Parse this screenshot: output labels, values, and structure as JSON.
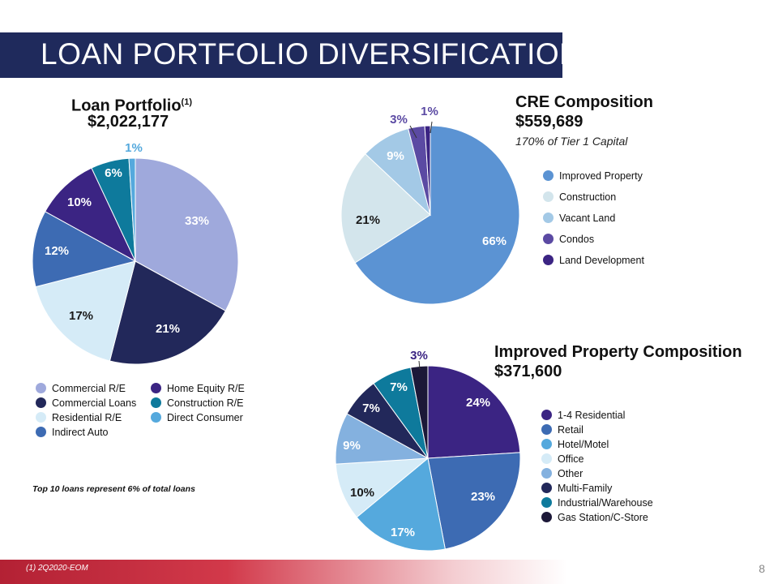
{
  "page": {
    "title": "LOAN PORTFOLIO DIVERSIFICATION",
    "note": "Top 10 loans represent 6% of total loans",
    "footnote": "(1) 2Q2020-EOM",
    "page_number": "8"
  },
  "chart_data": [
    {
      "type": "pie",
      "title": "Loan Portfolio",
      "title_superscript": "(1)",
      "subtitle": "$2,022,177",
      "slices": [
        {
          "label": "Commercial R/E",
          "value": 33,
          "value_label": "33%",
          "color": "#9fa9dc",
          "label_color": "#ffffff"
        },
        {
          "label": "Commercial Loans",
          "value": 21,
          "value_label": "21%",
          "color": "#22285a",
          "label_color": "#ffffff"
        },
        {
          "label": "Residential R/E",
          "value": 17,
          "value_label": "17%",
          "color": "#d5ebf7",
          "label_color": "#1a1a1a"
        },
        {
          "label": "Indirect Auto",
          "value": 12,
          "value_label": "12%",
          "color": "#3d6bb3",
          "label_color": "#ffffff"
        },
        {
          "label": "Home Equity R/E",
          "value": 10,
          "value_label": "10%",
          "color": "#3b2483",
          "label_color": "#ffffff"
        },
        {
          "label": "Construction R/E",
          "value": 6,
          "value_label": "6%",
          "color": "#0e7a9c",
          "label_color": "#ffffff"
        },
        {
          "label": "Direct Consumer",
          "value": 1,
          "value_label": "1%",
          "color": "#55a9dd",
          "label_color": "#55a9dd"
        }
      ]
    },
    {
      "type": "pie",
      "title": "CRE Composition",
      "subtitle": "$559,689",
      "caption": "170% of Tier 1 Capital",
      "slices": [
        {
          "label": "Improved Property",
          "value": 66,
          "value_label": "66%",
          "color": "#5b93d3",
          "label_color": "#ffffff"
        },
        {
          "label": "Construction",
          "value": 21,
          "value_label": "21%",
          "color": "#d3e5ec",
          "label_color": "#1a1a1a"
        },
        {
          "label": "Vacant Land",
          "value": 9,
          "value_label": "9%",
          "color": "#a3c9e6",
          "label_color": "#ffffff"
        },
        {
          "label": "Condos",
          "value": 3,
          "value_label": "3%",
          "color": "#5b4aa3",
          "label_color": "#5b4aa3"
        },
        {
          "label": "Land Development",
          "value": 1,
          "value_label": "1%",
          "color": "#3b2483",
          "label_color": "#5b4aa3"
        }
      ]
    },
    {
      "type": "pie",
      "title": "Improved Property Composition",
      "subtitle": "$371,600",
      "slices": [
        {
          "label": "1-4 Residential",
          "value": 24,
          "value_label": "24%",
          "color": "#3b2483",
          "label_color": "#ffffff"
        },
        {
          "label": "Retail",
          "value": 23,
          "value_label": "23%",
          "color": "#3d6bb3",
          "label_color": "#ffffff"
        },
        {
          "label": "Hotel/Motel",
          "value": 17,
          "value_label": "17%",
          "color": "#55a9dd",
          "label_color": "#ffffff"
        },
        {
          "label": "Office",
          "value": 10,
          "value_label": "10%",
          "color": "#d5ebf7",
          "label_color": "#1a1a1a"
        },
        {
          "label": "Other",
          "value": 9,
          "value_label": "9%",
          "color": "#84b1df",
          "label_color": "#ffffff"
        },
        {
          "label": "Multi-Family",
          "value": 7,
          "value_label": "7%",
          "color": "#22285a",
          "label_color": "#ffffff"
        },
        {
          "label": "Industrial/Warehouse",
          "value": 7,
          "value_label": "7%",
          "color": "#0e7a9c",
          "label_color": "#ffffff"
        },
        {
          "label": "Gas Station/C-Store",
          "value": 3,
          "value_label": "3%",
          "color": "#1c1838",
          "label_color": "#3b2483"
        }
      ]
    }
  ]
}
